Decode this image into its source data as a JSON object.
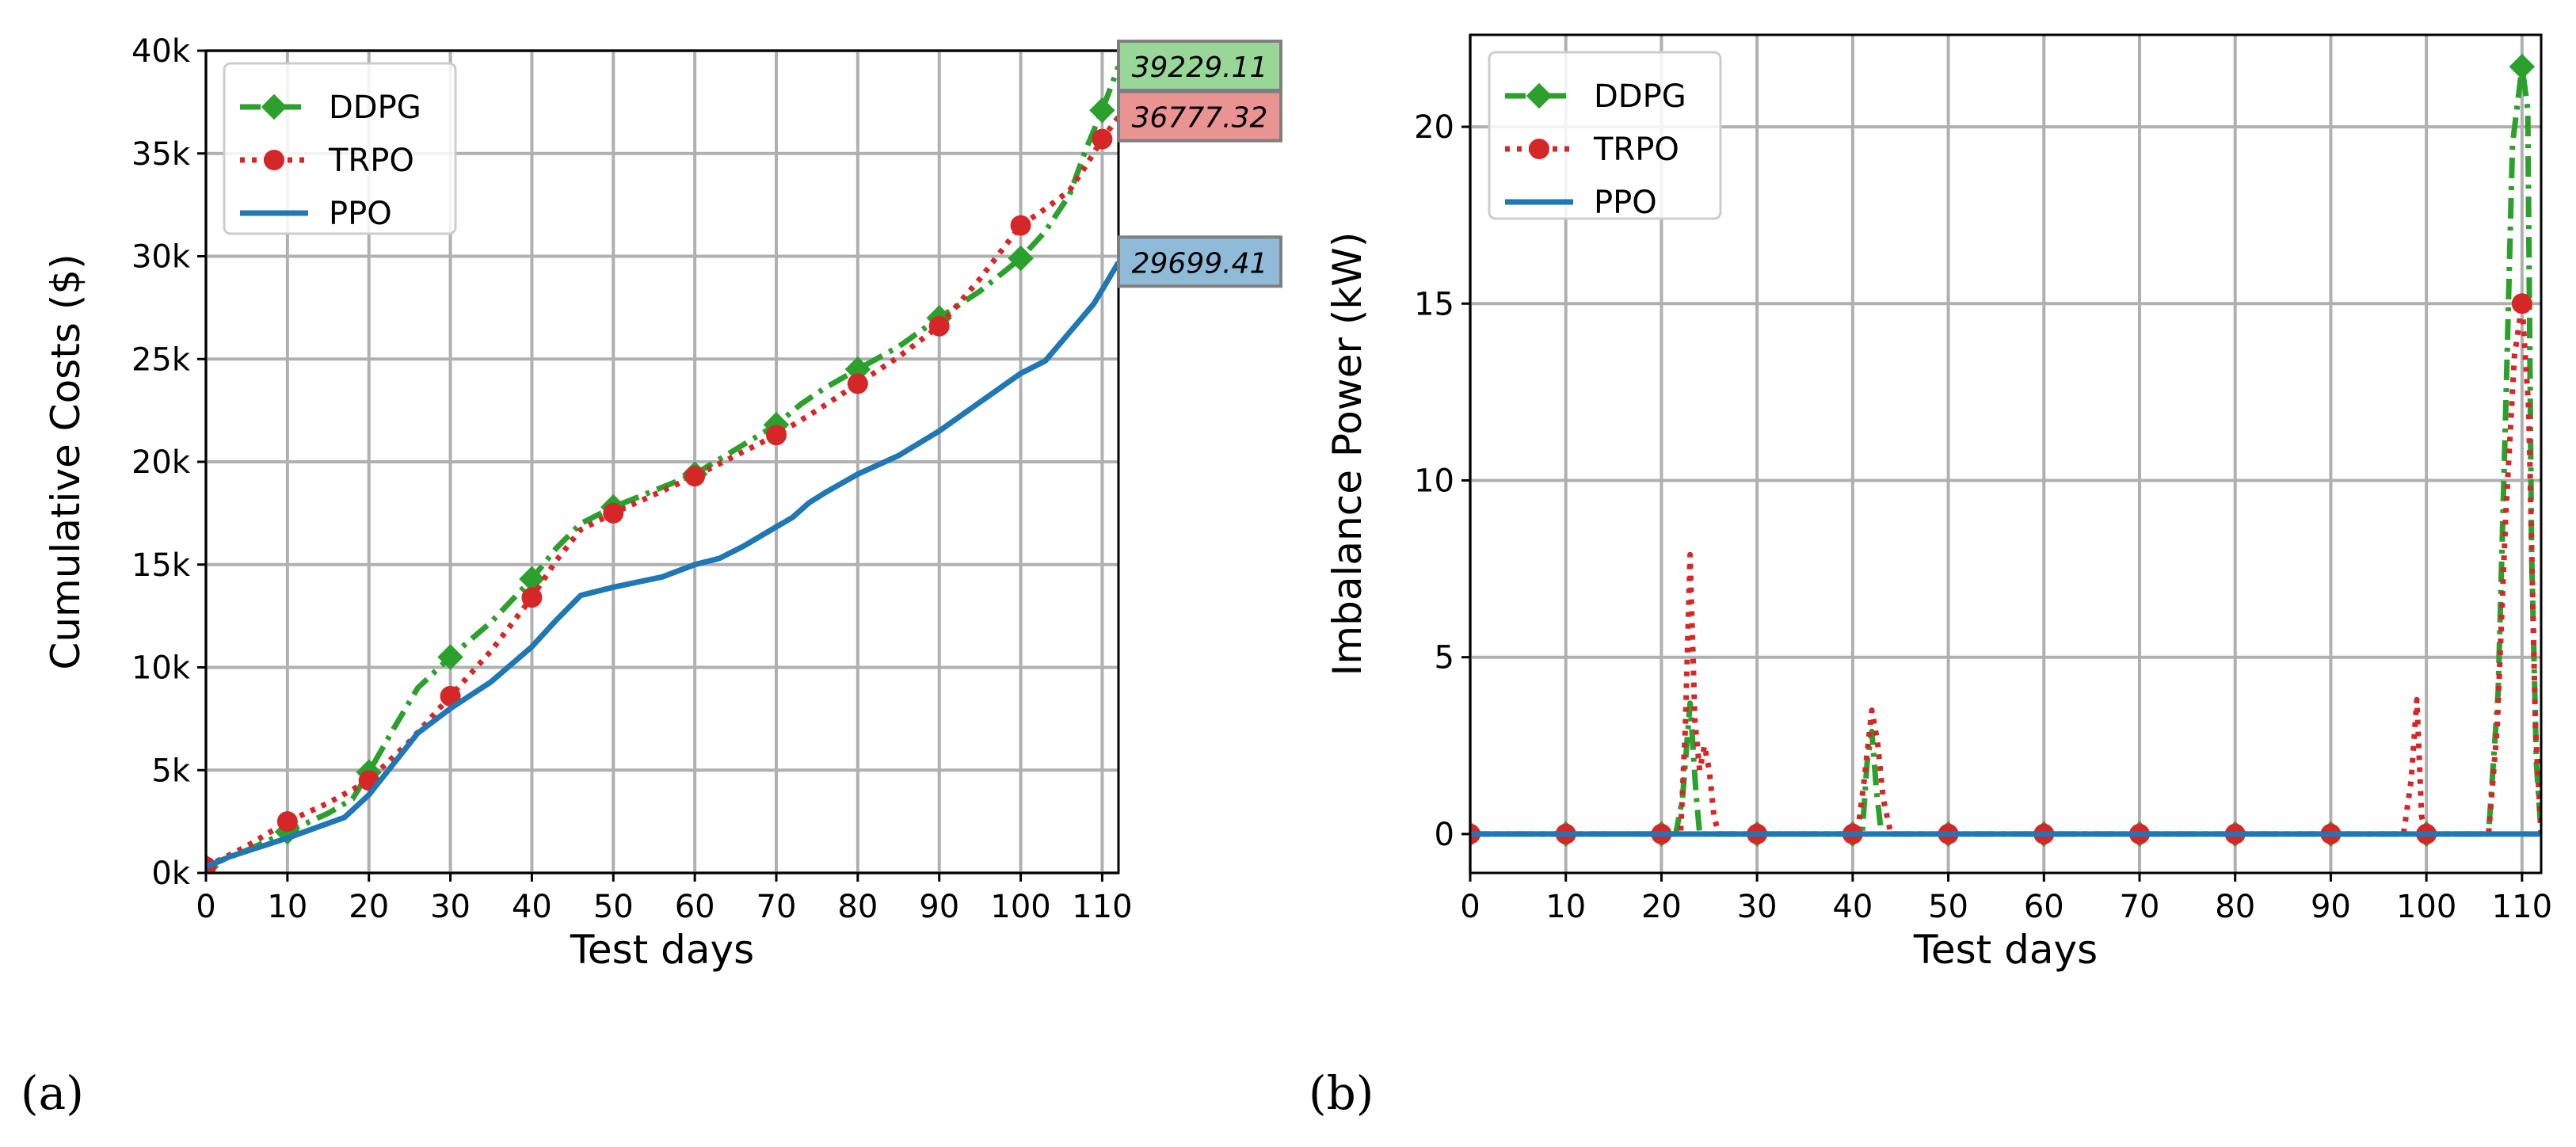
{
  "colors": {
    "DDPG": "#2ca02c",
    "TRPO": "#d62728",
    "PPO": "#1f77b4"
  },
  "chart_data": [
    {
      "type": "line",
      "panel": "(a)",
      "title": "",
      "xlabel": "Test days",
      "ylabel": "Cumulative Costs ($)",
      "xlim": [
        0,
        112
      ],
      "ylim": [
        0,
        40000
      ],
      "xticks": [
        0,
        10,
        20,
        30,
        40,
        50,
        60,
        70,
        80,
        90,
        100,
        110
      ],
      "xtick_labels": [
        "0",
        "10",
        "20",
        "30",
        "40",
        "50",
        "60",
        "70",
        "80",
        "90",
        "100",
        "110"
      ],
      "yticks": [
        0,
        5000,
        10000,
        15000,
        20000,
        25000,
        30000,
        35000,
        40000
      ],
      "ytick_labels": [
        "0k",
        "5k",
        "10k",
        "15k",
        "20k",
        "25k",
        "30k",
        "35k",
        "40k"
      ],
      "grid": true,
      "legend": "top-left",
      "series": [
        {
          "name": "DDPG",
          "style": "dashdot-diamond",
          "x": [
            0,
            5,
            10,
            15,
            18,
            20,
            23,
            26,
            30,
            35,
            40,
            43,
            46,
            50,
            55,
            60,
            65,
            70,
            73,
            76,
            80,
            85,
            90,
            95,
            100,
            103,
            106,
            108,
            110,
            112
          ],
          "y": [
            300,
            1100,
            2000,
            2900,
            3600,
            4900,
            7000,
            9000,
            10500,
            12200,
            14300,
            15800,
            17000,
            17800,
            18600,
            19400,
            20600,
            21800,
            22800,
            23600,
            24500,
            25600,
            27000,
            28300,
            29900,
            31200,
            33000,
            35200,
            37100,
            39229.11
          ],
          "markers_x": [
            0,
            10,
            20,
            30,
            40,
            50,
            60,
            70,
            80,
            90,
            100,
            110
          ]
        },
        {
          "name": "TRPO",
          "style": "dotted-circle",
          "x": [
            0,
            5,
            10,
            15,
            20,
            25,
            30,
            35,
            40,
            43,
            46,
            50,
            55,
            60,
            65,
            70,
            75,
            80,
            85,
            90,
            95,
            100,
            103,
            106,
            108,
            110,
            112
          ],
          "y": [
            300,
            1300,
            2500,
            3400,
            4500,
            6400,
            8600,
            10800,
            13400,
            15200,
            16700,
            17500,
            18400,
            19300,
            20300,
            21300,
            22500,
            23800,
            25100,
            26600,
            28900,
            31500,
            32300,
            33200,
            34400,
            35700,
            36777.32
          ],
          "markers_x": [
            0,
            10,
            20,
            30,
            40,
            50,
            60,
            70,
            80,
            90,
            100,
            110
          ]
        },
        {
          "name": "PPO",
          "style": "solid",
          "x": [
            0,
            3,
            10,
            17,
            20,
            23,
            26,
            30,
            35,
            40,
            43,
            46,
            50,
            56,
            60,
            63,
            66,
            69,
            72,
            74,
            76,
            80,
            85,
            90,
            95,
            100,
            103,
            106,
            109,
            112
          ],
          "y": [
            300,
            800,
            1700,
            2700,
            3800,
            5300,
            6800,
            8000,
            9300,
            11000,
            12300,
            13500,
            13900,
            14400,
            15000,
            15300,
            15900,
            16600,
            17300,
            18000,
            18500,
            19400,
            20300,
            21500,
            22900,
            24300,
            24900,
            26300,
            27700,
            29699.41
          ],
          "markers_x": []
        }
      ],
      "annotations": [
        {
          "text": "39229.11",
          "series": "DDPG",
          "value": 39229.11,
          "bg": "#98d798"
        },
        {
          "text": "36777.32",
          "series": "TRPO",
          "value": 36777.32,
          "bg": "#ea9393"
        },
        {
          "text": "29699.41",
          "series": "PPO",
          "value": 29699.41,
          "bg": "#8fbbd9"
        }
      ]
    },
    {
      "type": "line",
      "panel": "(b)",
      "title": "",
      "xlabel": "Test days",
      "ylabel": "Imbalance Power (kW)",
      "xlim": [
        0,
        112
      ],
      "ylim": [
        -1.1,
        22.6
      ],
      "xticks": [
        0,
        10,
        20,
        30,
        40,
        50,
        60,
        70,
        80,
        90,
        100,
        110
      ],
      "xtick_labels": [
        "0",
        "10",
        "20",
        "30",
        "40",
        "50",
        "60",
        "70",
        "80",
        "90",
        "100",
        "110"
      ],
      "yticks": [
        0,
        5,
        10,
        15,
        20
      ],
      "ytick_labels": [
        "0",
        "5",
        "10",
        "15",
        "20"
      ],
      "grid": true,
      "legend": "top-left",
      "series": [
        {
          "name": "DDPG",
          "style": "dashdot-diamond",
          "x": [
            0,
            21.5,
            22.2,
            23,
            23.6,
            24,
            41,
            41.5,
            42,
            42.5,
            43,
            106.5,
            107.5,
            108.3,
            109,
            110,
            110.6,
            111,
            111.5,
            112
          ],
          "y": [
            0,
            0,
            1.0,
            3.7,
            1.2,
            0,
            0,
            2.0,
            2.9,
            1.2,
            0,
            0,
            4.0,
            12.0,
            19.5,
            21.7,
            20.5,
            8.0,
            2.0,
            0
          ],
          "markers_x": [
            0,
            10,
            20,
            30,
            40,
            50,
            60,
            70,
            80,
            90,
            100,
            110
          ]
        },
        {
          "name": "TRPO",
          "style": "dotted-circle",
          "x": [
            0,
            22,
            22.5,
            23,
            23.5,
            24,
            24.5,
            25,
            25.5,
            26,
            40.5,
            41.2,
            42,
            42.6,
            43.2,
            44,
            97.6,
            98.4,
            99,
            99.5,
            100,
            106.5,
            107.4,
            108.3,
            109.2,
            110,
            110.7,
            111.4,
            112
          ],
          "y": [
            0,
            0,
            3.0,
            7.9,
            3.2,
            1.8,
            2.5,
            1.8,
            0.5,
            0,
            0,
            1.5,
            3.5,
            2.6,
            1.0,
            0,
            0,
            1.5,
            3.8,
            0.5,
            0,
            0,
            3.0,
            9.0,
            13.5,
            15.0,
            12.0,
            3.0,
            0
          ],
          "markers_x": [
            0,
            10,
            20,
            30,
            40,
            50,
            60,
            70,
            80,
            90,
            100,
            110
          ]
        },
        {
          "name": "PPO",
          "style": "solid",
          "x": [
            0,
            112
          ],
          "y": [
            0,
            0
          ],
          "markers_x": []
        }
      ],
      "annotations": []
    }
  ]
}
